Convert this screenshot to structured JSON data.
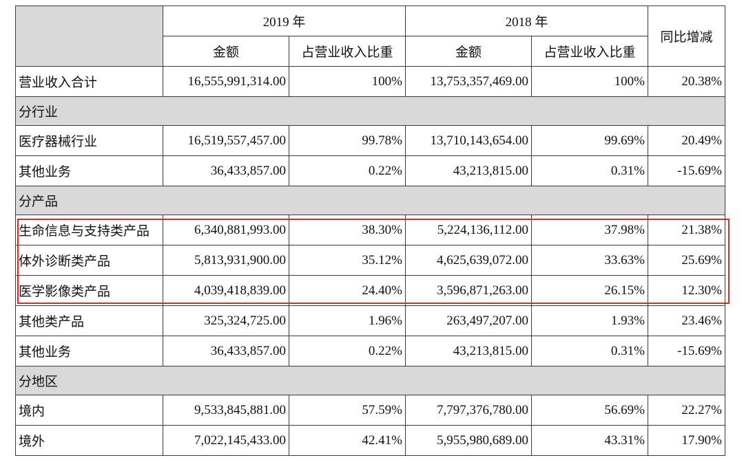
{
  "header": {
    "year_2019": "2019 年",
    "year_2018": "2018 年",
    "yoy": "同比增减",
    "amount_2019": "金额",
    "share_2019": "占营业收入比重",
    "amount_2018": "金额",
    "share_2018": "占营业收入比重"
  },
  "rows": [
    {
      "type": "data",
      "label": "营业收入合计",
      "amount_2019": "16,555,991,314.00",
      "share_2019": "100%",
      "amount_2018": "13,753,357,469.00",
      "share_2018": "100%",
      "yoy": "20.38%"
    },
    {
      "type": "section",
      "label": "分行业"
    },
    {
      "type": "data",
      "label": "医疗器械行业",
      "amount_2019": "16,519,557,457.00",
      "share_2019": "99.78%",
      "amount_2018": "13,710,143,654.00",
      "share_2018": "99.69%",
      "yoy": "20.49%"
    },
    {
      "type": "data",
      "label": "其他业务",
      "amount_2019": "36,433,857.00",
      "share_2019": "0.22%",
      "amount_2018": "43,213,815.00",
      "share_2018": "0.31%",
      "yoy": "-15.69%"
    },
    {
      "type": "section",
      "label": "分产品"
    },
    {
      "type": "data",
      "label": "生命信息与支持类产品",
      "amount_2019": "6,340,881,993.00",
      "share_2019": "38.30%",
      "amount_2018": "5,224,136,112.00",
      "share_2018": "37.98%",
      "yoy": "21.38%"
    },
    {
      "type": "data",
      "label": "体外诊断类产品",
      "amount_2019": "5,813,931,900.00",
      "share_2019": "35.12%",
      "amount_2018": "4,625,639,072.00",
      "share_2018": "33.63%",
      "yoy": "25.69%"
    },
    {
      "type": "data",
      "label": "医学影像类产品",
      "amount_2019": "4,039,418,839.00",
      "share_2019": "24.40%",
      "amount_2018": "3,596,871,263.00",
      "share_2018": "26.15%",
      "yoy": "12.30%"
    },
    {
      "type": "data",
      "label": "其他类产品",
      "amount_2019": "325,324,725.00",
      "share_2019": "1.96%",
      "amount_2018": "263,497,207.00",
      "share_2018": "1.93%",
      "yoy": "23.46%"
    },
    {
      "type": "data",
      "label": "其他业务",
      "amount_2019": "36,433,857.00",
      "share_2019": "0.22%",
      "amount_2018": "43,213,815.00",
      "share_2018": "0.31%",
      "yoy": "-15.69%"
    },
    {
      "type": "section",
      "label": "分地区"
    },
    {
      "type": "data",
      "label": "境内",
      "amount_2019": "9,533,845,881.00",
      "share_2019": "57.59%",
      "amount_2018": "7,797,376,780.00",
      "share_2018": "56.69%",
      "yoy": "22.27%"
    },
    {
      "type": "data",
      "label": "境外",
      "amount_2019": "7,022,145,433.00",
      "share_2019": "42.41%",
      "amount_2018": "5,955,980,689.00",
      "share_2018": "43.31%",
      "yoy": "17.90%"
    }
  ],
  "colors": {
    "highlight": "#e0271f",
    "section_bg": "#d9d9d9",
    "border": "#3a3a3a"
  }
}
